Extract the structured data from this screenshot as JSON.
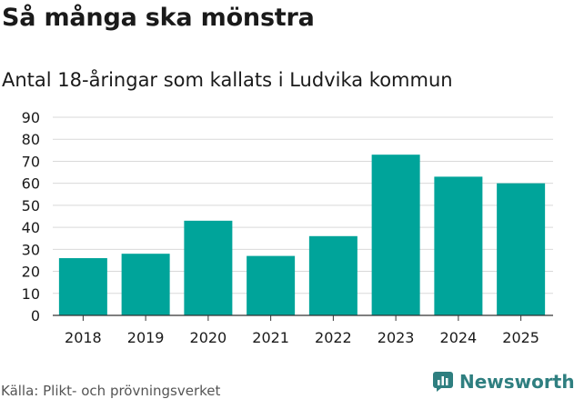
{
  "header": {
    "title": "Så många ska mönstra",
    "subtitle": "Antal 18-åringar som kallats i Ludvika kommun"
  },
  "footer": {
    "source": "Källa: Plikt- och prövningsverket",
    "brand": "Newsworthy"
  },
  "colors": {
    "bar": "#00a49a",
    "grid": "#d9d9d9",
    "axis": "#333333",
    "brand": "#2f7f80"
  },
  "chart_data": {
    "type": "bar",
    "categories": [
      "2018",
      "2019",
      "2020",
      "2021",
      "2022",
      "2023",
      "2024",
      "2025"
    ],
    "values": [
      26,
      28,
      43,
      27,
      36,
      73,
      63,
      60
    ],
    "title": "Så många ska mönstra",
    "subtitle": "Antal 18-åringar som kallats i Ludvika kommun",
    "xlabel": "",
    "ylabel": "",
    "ylim": [
      0,
      90
    ],
    "yticks": [
      0,
      10,
      20,
      30,
      40,
      50,
      60,
      70,
      80,
      90
    ],
    "grid": true,
    "legend": "none"
  }
}
